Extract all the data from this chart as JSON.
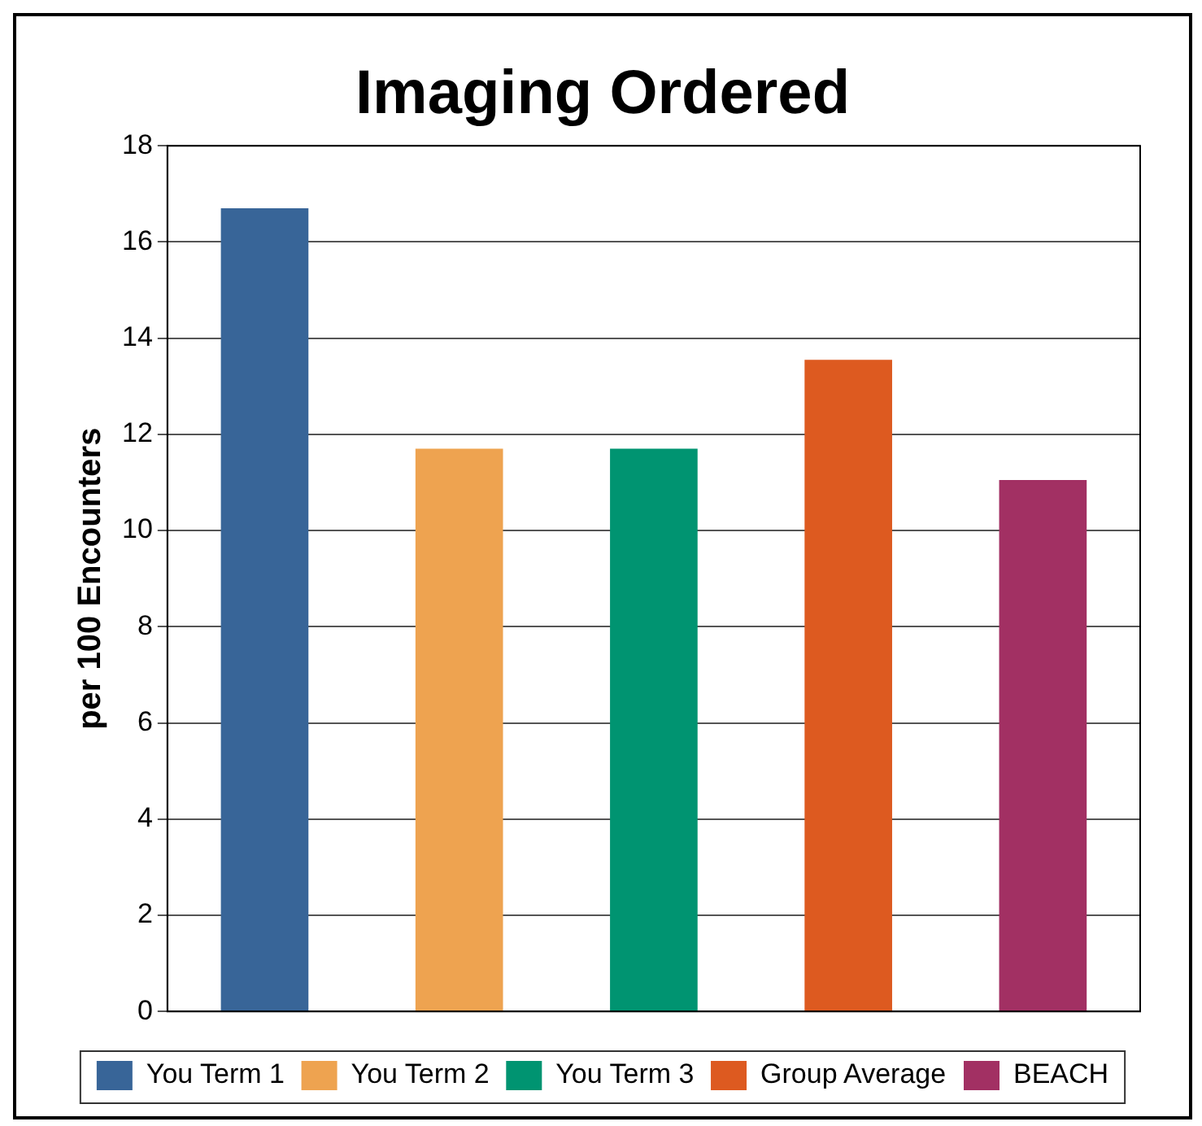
{
  "chart_data": {
    "type": "bar",
    "title": "Imaging Ordered",
    "ylabel": "per 100 Encounters",
    "categories": [
      null,
      null,
      null,
      null,
      null
    ],
    "series": [
      {
        "name": "You Term 1",
        "color": "#386598",
        "values": [
          16.7,
          null,
          null,
          null,
          null
        ]
      },
      {
        "name": "You Term 2",
        "color": "#eea350",
        "values": [
          null,
          11.7,
          null,
          null,
          null
        ]
      },
      {
        "name": "You Term 3",
        "color": "#009471",
        "values": [
          null,
          null,
          11.7,
          null,
          null
        ]
      },
      {
        "name": "Group Average",
        "color": "#dd5a20",
        "values": [
          null,
          null,
          null,
          13.55,
          null
        ]
      },
      {
        "name": "BEACH",
        "color": "#a23063",
        "values": [
          null,
          null,
          null,
          null,
          11.05
        ]
      }
    ],
    "ylim": [
      0,
      18
    ],
    "yticks": [
      0,
      2,
      4,
      6,
      8,
      10,
      12,
      14,
      16,
      18
    ],
    "grid": "y",
    "legend": "bottom"
  }
}
